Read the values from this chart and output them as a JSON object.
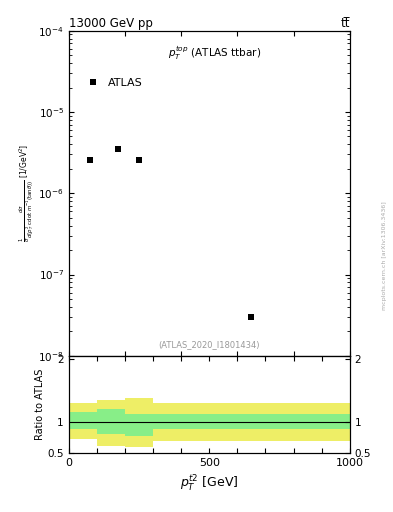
{
  "title_left": "13000 GeV pp",
  "title_right": "tt̅",
  "annotation": "(ATLAS_2020_I1801434)",
  "legend_label": "ATLAS",
  "xlabel": "p_T^{t2} [GeV]",
  "data_x": [
    75,
    175,
    250,
    650
  ],
  "data_y": [
    2.6e-06,
    3.5e-06,
    2.6e-06,
    3e-08
  ],
  "xlim": [
    0,
    1000
  ],
  "ylim_main": [
    1e-08,
    0.0001
  ],
  "ylim_ratio": [
    0.5,
    2.05
  ],
  "ratio_band_bins": [
    0,
    100,
    200,
    300,
    1000
  ],
  "ratio_green_lo": [
    0.88,
    0.8,
    0.78,
    0.88
  ],
  "ratio_green_hi": [
    1.15,
    1.2,
    1.12,
    1.12
  ],
  "ratio_yellow_lo": [
    0.72,
    0.62,
    0.6,
    0.7
  ],
  "ratio_yellow_hi": [
    1.3,
    1.35,
    1.38,
    1.3
  ],
  "green_color": "#88EE88",
  "yellow_color": "#EEEE66",
  "marker_color": "black",
  "marker_size": 5,
  "bg_color": "white",
  "watermark": "mcplots.cern.ch [arXiv:1306.3436]"
}
